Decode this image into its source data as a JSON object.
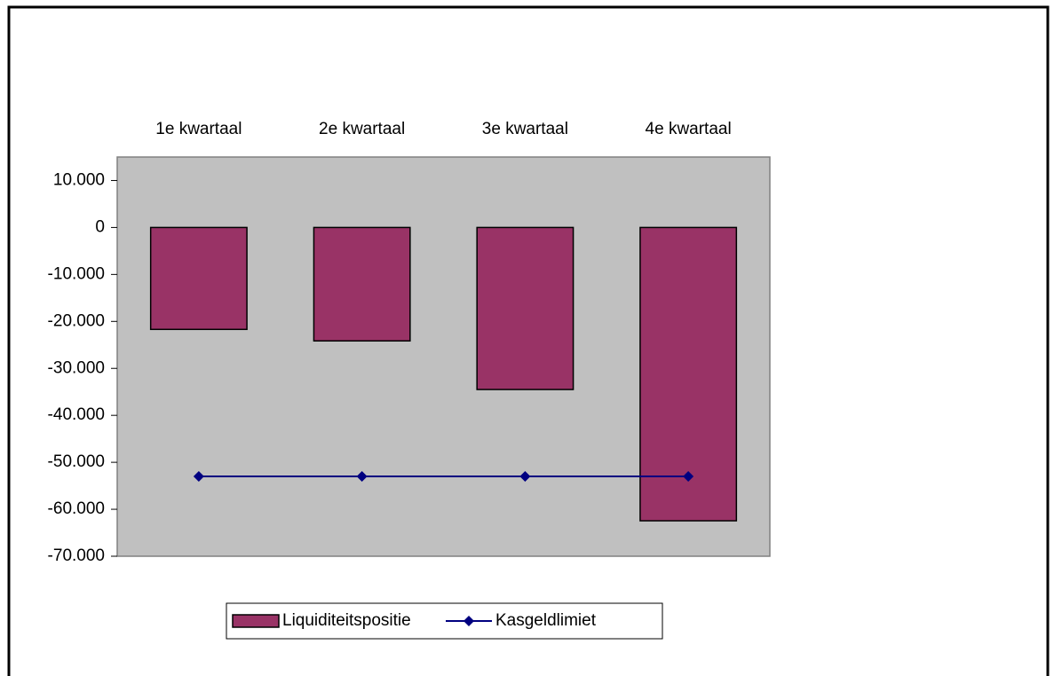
{
  "chart_data": {
    "type": "bar",
    "categories": [
      "1e kwartaal",
      "2e kwartaal",
      "3e kwartaal",
      "4e kwartaal"
    ],
    "series": [
      {
        "name": "Liquiditeitspositie",
        "type": "bar",
        "color": "#993366",
        "values": [
          -21700,
          -24150,
          -34500,
          -62450
        ]
      },
      {
        "name": "Kasgeldlimiet",
        "type": "line",
        "color": "#000080",
        "values": [
          -53000,
          -53000,
          -53000,
          -53000
        ]
      }
    ],
    "ylim": [
      -70000,
      15000
    ],
    "yticks": [
      {
        "value": 10000,
        "label": "10.000"
      },
      0,
      {
        "value": -10000,
        "label": "-10.000"
      },
      {
        "value": -20000,
        "label": "-20.000"
      },
      {
        "value": -30000,
        "label": "-30.000"
      },
      {
        "value": -40000,
        "label": "-40.000"
      },
      {
        "value": -50000,
        "label": "-50.000"
      },
      {
        "value": -60000,
        "label": "-60.000"
      },
      {
        "value": -70000,
        "label": "-70.000"
      }
    ],
    "plot_background": "#c0c0c0",
    "legend": "bottom"
  }
}
